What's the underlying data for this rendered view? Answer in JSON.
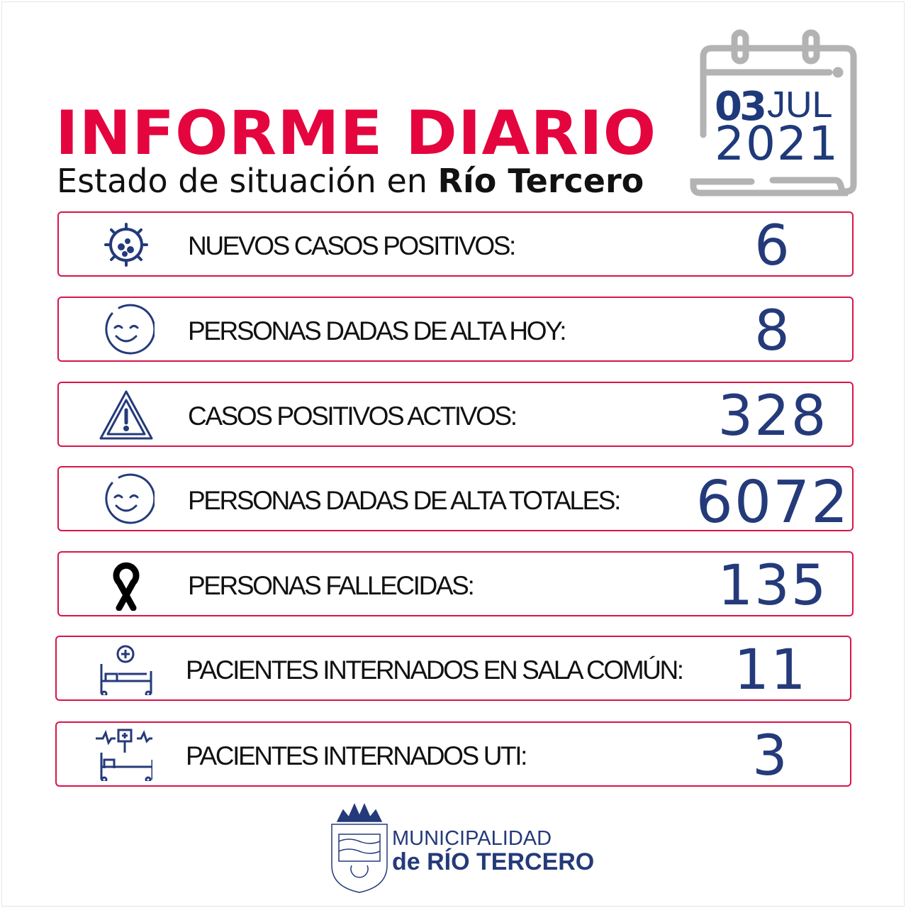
{
  "header": {
    "title": "INFORME DIARIO",
    "subtitle_prefix": "Estado de situación en ",
    "subtitle_city": "Río Tercero"
  },
  "date": {
    "day": "03",
    "month": "JUL",
    "year": "2021"
  },
  "colors": {
    "accent": "#e4053f",
    "navy": "#243a7a",
    "calendar_gray": "#b3b3b3"
  },
  "stats": [
    {
      "icon": "virus-icon",
      "label": "NUEVOS CASOS POSITIVOS:",
      "value": "6"
    },
    {
      "icon": "smiley-icon",
      "label": "PERSONAS DADAS DE ALTA HOY:",
      "value": "8"
    },
    {
      "icon": "warning-icon",
      "label": "CASOS POSITIVOS ACTIVOS:",
      "value": "328"
    },
    {
      "icon": "smiley-icon",
      "label": "PERSONAS DADAS DE ALTA TOTALES:",
      "value": "6072"
    },
    {
      "icon": "mourning-ribbon-icon",
      "label": "PERSONAS FALLECIDAS:",
      "value": "135"
    },
    {
      "icon": "hospital-bed-icon",
      "label": "PACIENTES INTERNADOS EN SALA COMÚN:",
      "value": "11"
    },
    {
      "icon": "icu-bed-icon",
      "label": "PACIENTES INTERNADOS UTI:",
      "value": "3"
    }
  ],
  "footer": {
    "line1": "MUNICIPALIDAD",
    "line2": "de RÍO TERCERO"
  }
}
